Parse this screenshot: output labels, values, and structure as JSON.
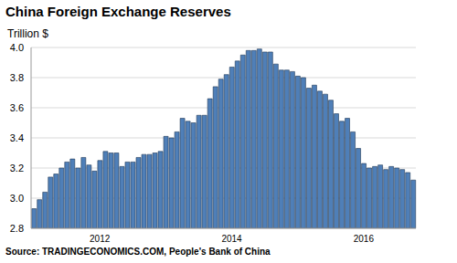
{
  "chart_data": {
    "type": "bar",
    "title": "China Foreign Exchange Reserves",
    "y_label": "Trillion $",
    "source": "Source: TRADINGECONOMICS.COM, People's Bank of China",
    "categories": [
      null,
      null,
      null,
      null,
      null,
      null,
      null,
      null,
      null,
      null,
      null,
      null,
      "2012",
      null,
      null,
      null,
      null,
      null,
      null,
      null,
      null,
      null,
      null,
      null,
      null,
      null,
      null,
      null,
      null,
      null,
      null,
      null,
      null,
      null,
      null,
      null,
      "2014",
      null,
      null,
      null,
      null,
      null,
      null,
      null,
      null,
      null,
      null,
      null,
      null,
      null,
      null,
      null,
      null,
      null,
      null,
      null,
      null,
      null,
      null,
      null,
      "2016",
      null,
      null,
      null,
      null,
      null,
      null,
      null,
      null,
      null
    ],
    "values": [
      2.93,
      2.99,
      3.04,
      3.14,
      3.16,
      3.2,
      3.24,
      3.26,
      3.2,
      3.27,
      3.22,
      3.18,
      3.25,
      3.31,
      3.3,
      3.3,
      3.21,
      3.24,
      3.24,
      3.27,
      3.29,
      3.29,
      3.3,
      3.31,
      3.41,
      3.4,
      3.44,
      3.53,
      3.51,
      3.5,
      3.55,
      3.55,
      3.66,
      3.74,
      3.79,
      3.82,
      3.87,
      3.91,
      3.95,
      3.98,
      3.98,
      3.99,
      3.97,
      3.97,
      3.89,
      3.85,
      3.85,
      3.84,
      3.81,
      3.8,
      3.73,
      3.75,
      3.71,
      3.69,
      3.65,
      3.56,
      3.51,
      3.53,
      3.44,
      3.33,
      3.23,
      3.2,
      3.21,
      3.22,
      3.19,
      3.21,
      3.2,
      3.19,
      3.17,
      3.12
    ],
    "color": "#4f7fb8",
    "ylim": [
      2.8,
      4.0
    ],
    "yticks": [
      2.8,
      {
        "value": 3,
        "label": "3.0"
      },
      3.2,
      3.4,
      3.6,
      3.8,
      {
        "value": 4,
        "label": "4.0"
      }
    ],
    "grid": true
  }
}
